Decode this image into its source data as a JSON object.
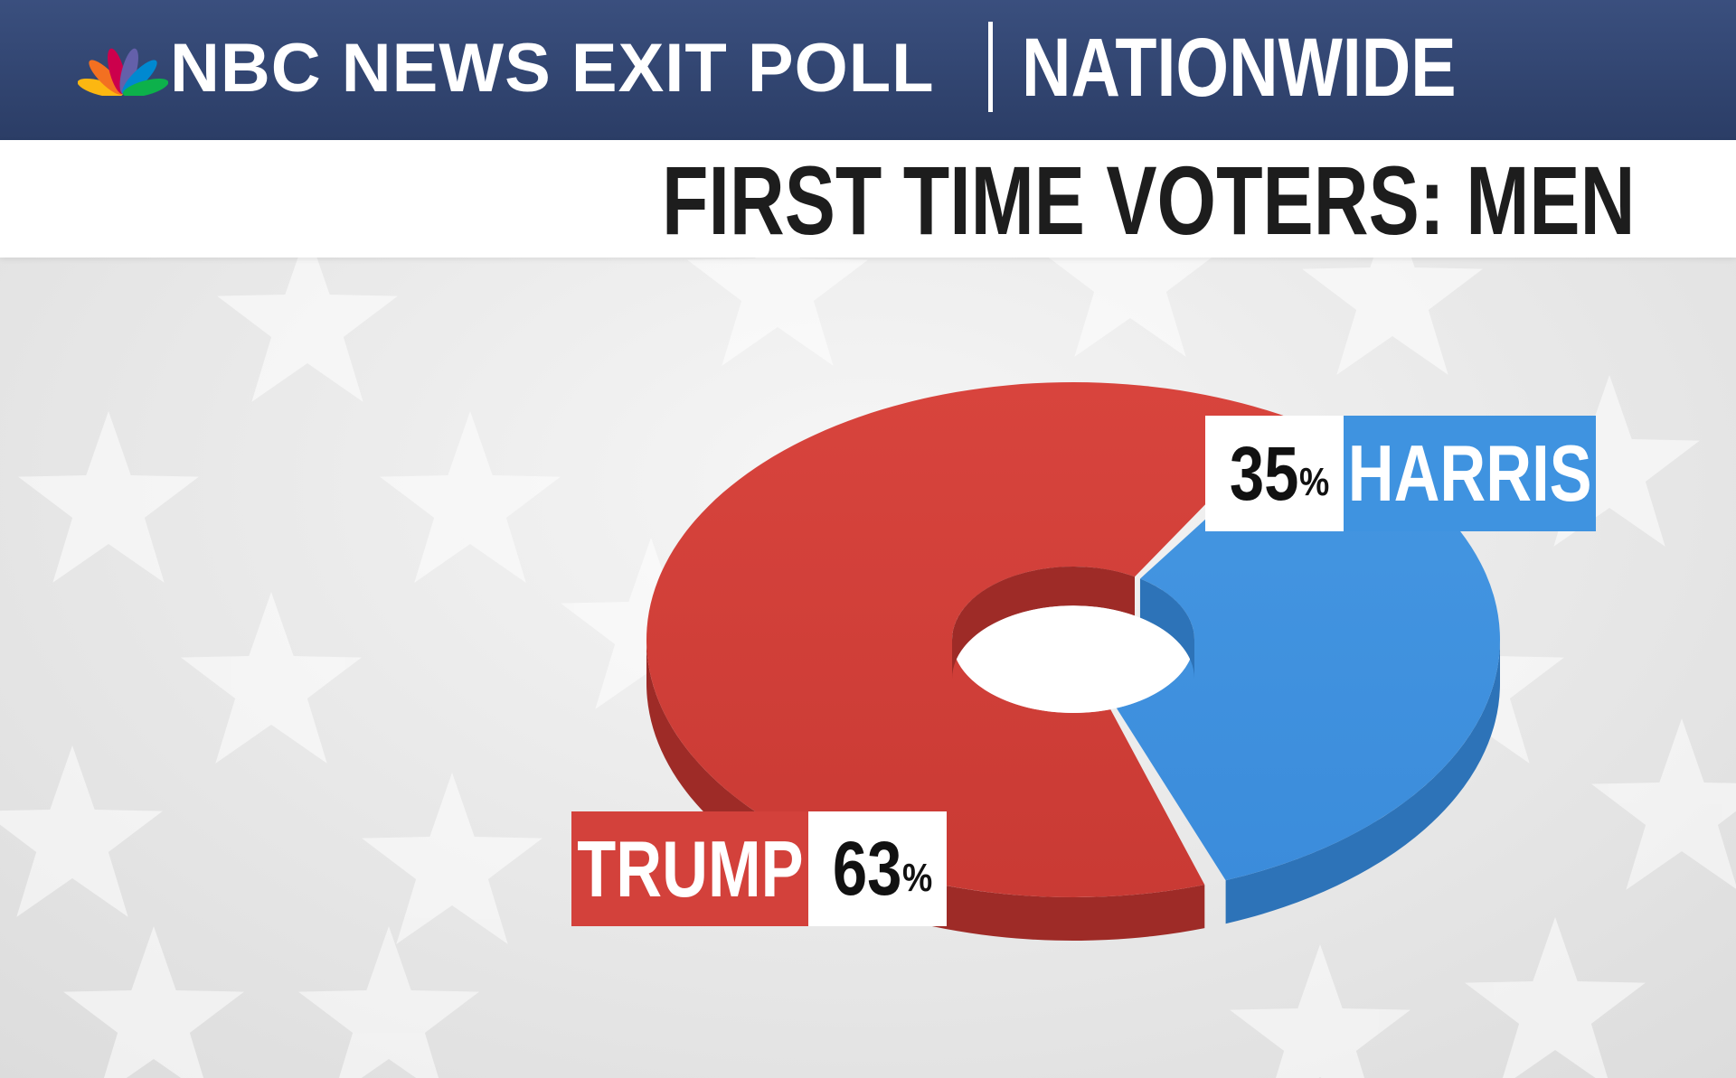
{
  "header": {
    "network_title": "NBC NEWS EXIT POLL",
    "scope": "NATIONWIDE",
    "logo_icon": "nbc-peacock-icon"
  },
  "chart_data": {
    "type": "pie",
    "title": "FIRST TIME VOTERS: MEN",
    "style": "3d-donut",
    "slices": [
      {
        "label": "HARRIS",
        "value": 35,
        "display_value": "35",
        "unit": "%",
        "color": "#3f93e0"
      },
      {
        "label": "TRUMP",
        "value": 63,
        "display_value": "63",
        "unit": "%",
        "color": "#d3413b"
      }
    ]
  },
  "colors": {
    "header_bg": "#2f4370",
    "harris_blue": "#3f93e0",
    "trump_red": "#d3413b",
    "background": "#ededed"
  }
}
